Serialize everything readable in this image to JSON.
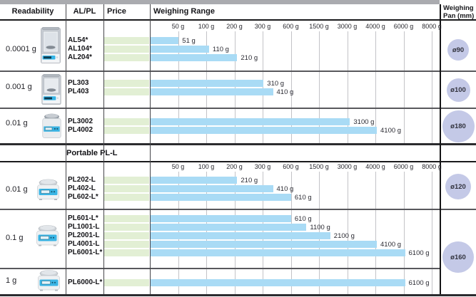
{
  "header": {
    "readability": "Readability",
    "model": "AL/PL",
    "price": "Price",
    "weighing_range": "Weighing Range",
    "weighing_pan_line1": "Weighing",
    "weighing_pan_line2": "Pan (mm)"
  },
  "section_header": "Portable PL-L",
  "colors": {
    "bar_blue": "#a9dbf5",
    "price_green": "#e2efd4",
    "pan_circle": "#c4c9e7",
    "top_strip": "#aaabaf"
  },
  "chart_data": {
    "type": "bar",
    "title": "Weighing Range",
    "x_unit": "g",
    "x_scale": "piecewise-linear: equal spacing between listed ticks",
    "x_tick_labels": [
      "50 g",
      "100 g",
      "200 g",
      "300 g",
      "600 g",
      "1500 g",
      "3000 g",
      "4000 g",
      "6000 g",
      "8000 g"
    ],
    "x_tick_values": [
      50,
      100,
      200,
      300,
      600,
      1500,
      3000,
      4000,
      6000,
      8000
    ],
    "segment_boundaries": [
      0,
      50,
      100,
      200,
      300,
      600,
      1500,
      3000,
      4000,
      6000,
      8000
    ],
    "groups": [
      {
        "readability": "0.0001 g",
        "pan_diameter": "ø90",
        "balance_type": "analytical",
        "models": [
          {
            "name": "AL54*",
            "capacity_g": 51,
            "capacity_label": "51 g"
          },
          {
            "name": "AL104*",
            "capacity_g": 110,
            "capacity_label": "110 g"
          },
          {
            "name": "AL204*",
            "capacity_g": 210,
            "capacity_label": "210 g"
          }
        ]
      },
      {
        "readability": "0.001 g",
        "pan_diameter": "ø100",
        "balance_type": "draftshield",
        "models": [
          {
            "name": "PL303",
            "capacity_g": 310,
            "capacity_label": "310 g"
          },
          {
            "name": "PL403",
            "capacity_g": 410,
            "capacity_label": "410 g"
          }
        ]
      },
      {
        "readability": "0.01 g",
        "pan_diameter": "ø180",
        "balance_type": "precision",
        "models": [
          {
            "name": "PL3002",
            "capacity_g": 3100,
            "capacity_label": "3100 g"
          },
          {
            "name": "PL4002",
            "capacity_g": 4100,
            "capacity_label": "4100 g"
          }
        ]
      },
      {
        "readability": "0.01 g",
        "pan_diameter": "ø120",
        "balance_type": "portable",
        "models": [
          {
            "name": "PL202-L",
            "capacity_g": 210,
            "capacity_label": "210 g"
          },
          {
            "name": "PL402-L",
            "capacity_g": 410,
            "capacity_label": "410 g"
          },
          {
            "name": "PL602-L*",
            "capacity_g": 610,
            "capacity_label": "610 g"
          }
        ]
      },
      {
        "readability": "0.1 g",
        "pan_diameter": "ø160",
        "balance_type": "portable",
        "models": [
          {
            "name": "PL601-L*",
            "capacity_g": 610,
            "capacity_label": "610 g"
          },
          {
            "name": "PL1001-L",
            "capacity_g": 1100,
            "capacity_label": "1100 g"
          },
          {
            "name": "PL2001-L",
            "capacity_g": 2100,
            "capacity_label": "2100 g"
          },
          {
            "name": "PL4001-L",
            "capacity_g": 4100,
            "capacity_label": "4100 g"
          },
          {
            "name": "PL6001-L*",
            "capacity_g": 6100,
            "capacity_label": "6100 g"
          }
        ]
      },
      {
        "readability": "1 g",
        "pan_diameter": null,
        "balance_type": "portable",
        "models": [
          {
            "name": "PL6000-L*",
            "capacity_g": 6100,
            "capacity_label": "6100 g"
          }
        ]
      }
    ]
  }
}
